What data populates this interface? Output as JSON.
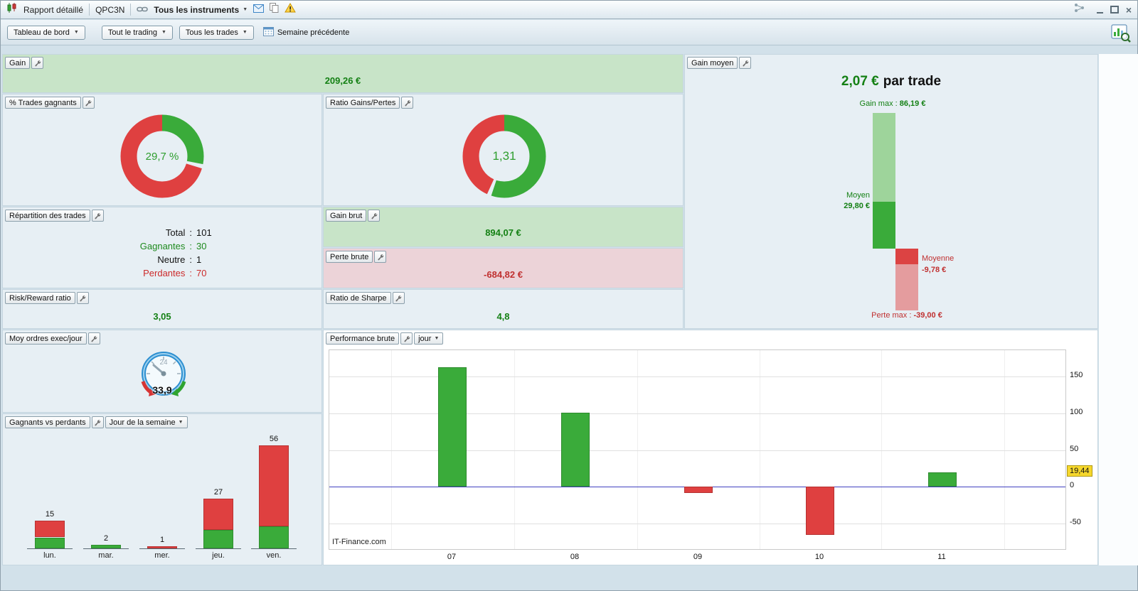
{
  "titlebar": {
    "tab_report": "Rapport détaillé",
    "tab_code": "QPC3N",
    "instruments_dropdown": "Tous les instruments"
  },
  "toolbar": {
    "dashboard_dropdown": "Tableau de bord",
    "trading_dropdown": "Tout le trading",
    "trades_dropdown": "Tous les trades",
    "period_label": "Semaine précédente"
  },
  "panels": {
    "gain": {
      "title": "Gain",
      "value": "209,26 €"
    },
    "pct_trades": {
      "title": "% Trades gagnants"
    },
    "ratio_gp": {
      "title": "Ratio Gains/Pertes"
    },
    "gain_moyen": {
      "title": "Gain moyen",
      "headline_value": "2,07 €",
      "headline_suffix": "par trade",
      "gain_max_label": "Gain max :",
      "gain_max_value": "86,19 €",
      "moyen_label": "Moyen",
      "moyen_value": "29,80 €",
      "moyenne_label": "Moyenne",
      "moyenne_value": "-9,78 €",
      "perte_max_label": "Perte max :",
      "perte_max_value": "-39,00 €"
    },
    "repartition": {
      "title": "Répartition des trades",
      "rows": [
        {
          "label": "Total",
          "value": "101"
        },
        {
          "label": "Gagnantes",
          "value": "30"
        },
        {
          "label": "Neutre",
          "value": "1"
        },
        {
          "label": "Perdantes",
          "value": "70"
        }
      ]
    },
    "gain_brut": {
      "title": "Gain brut",
      "value": "894,07 €"
    },
    "perte_brute": {
      "title": "Perte brute",
      "value": "-684,82 €"
    },
    "risk_reward": {
      "title": "Risk/Reward ratio",
      "value": "3,05"
    },
    "sharpe": {
      "title": "Ratio de Sharpe",
      "value": "4,8"
    },
    "moy_ordres": {
      "title": "Moy ordres exec/jour",
      "value": "33,9",
      "gauge_number": "24"
    },
    "gagnants_perdants": {
      "title": "Gagnants vs perdants",
      "dropdown": "Jour de la semaine"
    },
    "performance": {
      "title": "Performance brute",
      "dropdown": "jour"
    }
  },
  "chart_data": [
    {
      "id": "pct_trades_donut",
      "type": "pie",
      "title": "% Trades gagnants",
      "labels": [
        "gagnants",
        "perdants"
      ],
      "values": [
        29.7,
        70.3
      ],
      "unit": "%",
      "center_text": "29,7 %",
      "colors": [
        "#3aab3a",
        "#df4040"
      ]
    },
    {
      "id": "ratio_gains_pertes_donut",
      "type": "pie",
      "title": "Ratio Gains/Pertes",
      "ratio": 1.31,
      "labels": [
        "gains",
        "pertes"
      ],
      "values": [
        56.7,
        43.3
      ],
      "center_text": "1,31",
      "colors": [
        "#3aab3a",
        "#df4040"
      ]
    },
    {
      "id": "gain_moyen_waterfall",
      "type": "bar",
      "title": "Gain moyen",
      "headline": "2,07 € par trade",
      "gain_max": 86.19,
      "moyen": 29.8,
      "moyenne": -9.78,
      "perte_max": -39.0,
      "colors": {
        "gain_max": "#9ed49b",
        "moyen": "#3aab3a",
        "moyenne": "#dc4343",
        "perte_max": "#e49c9e"
      }
    },
    {
      "id": "gagnants_vs_perdants",
      "type": "bar",
      "title": "Gagnants vs perdants par jour de la semaine",
      "categories": [
        "lun.",
        "mar.",
        "mer.",
        "jeu.",
        "ven."
      ],
      "totals": [
        15,
        2,
        1,
        27,
        56
      ],
      "series": [
        {
          "name": "gagnants",
          "color": "#3aab3a",
          "values": [
            6,
            2,
            0,
            10,
            12
          ]
        },
        {
          "name": "perdants",
          "color": "#df4040",
          "values": [
            9,
            0,
            1,
            17,
            44
          ]
        }
      ]
    },
    {
      "id": "performance_brute",
      "type": "bar",
      "title": "Performance brute par jour",
      "categories": [
        "07",
        "08",
        "09",
        "10",
        "11"
      ],
      "values": [
        163,
        101,
        -8.5,
        -65.7,
        19.44
      ],
      "yticks": [
        150,
        100,
        50,
        0,
        -50
      ],
      "ylim": [
        -85,
        186
      ],
      "last_value": 19.44,
      "last_value_label": "19,44",
      "positive_color": "#3aab3a",
      "negative_color": "#df4040",
      "zero_line_color": "#4040c0",
      "watermark": "IT-Finance.com",
      "grid": true,
      "legend": false
    }
  ]
}
